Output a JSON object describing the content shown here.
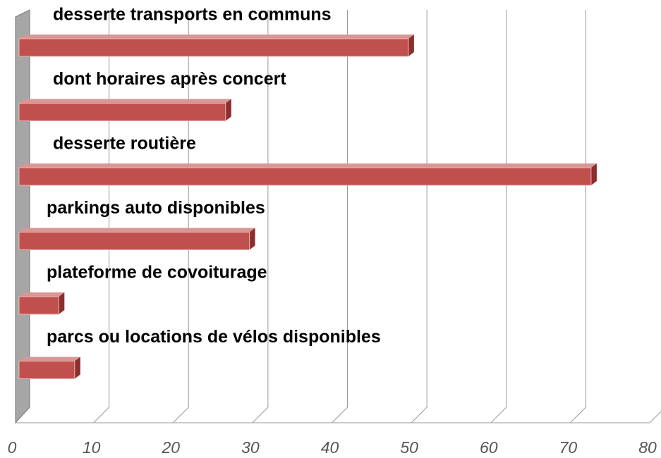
{
  "chart_data": {
    "type": "bar3d_horizontal",
    "categories": [
      "desserte transports en communs",
      "dont horaires après concert",
      "desserte routière",
      "parkings auto disponibles",
      "plateforme de covoiturage",
      "parcs ou locations de vélos disponibles"
    ],
    "values": [
      49,
      26,
      72,
      29,
      5,
      7
    ],
    "color": "#c0504d",
    "xlim": [
      0,
      80
    ],
    "xticks": [
      0,
      10,
      20,
      30,
      40,
      50,
      60,
      70,
      80
    ],
    "grid": true
  }
}
